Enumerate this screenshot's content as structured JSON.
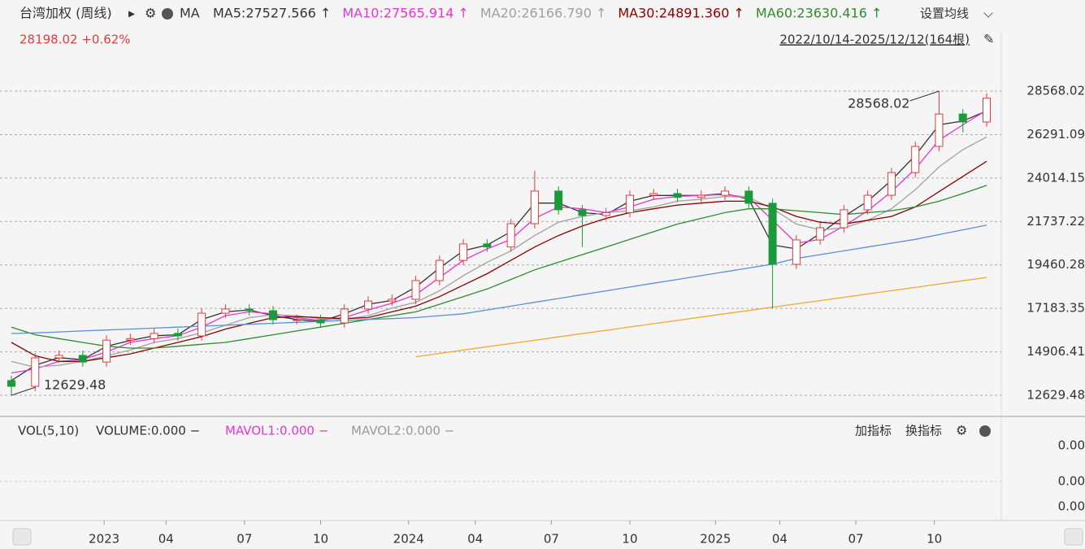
{
  "header": {
    "title": "台湾加权 (周线)",
    "indicator": "MA",
    "quote": "28198.02 +0.62%",
    "range": "2022/10/14-2025/12/12(164根)",
    "settings": "设置均线"
  },
  "volume_panel": {
    "title": "VOL(5,10)",
    "items": [
      "VOLUME:0.000 −",
      "MAVOL1:0.000 −",
      "MAVOL2:0.000 −"
    ],
    "buttons": [
      "加指标",
      "换指标"
    ],
    "yticks": [
      "0.00",
      "0.00",
      "0.00"
    ]
  },
  "chart_data": {
    "type": "candlestick",
    "candles": [
      [
        13400,
        13650,
        12629.48,
        13100
      ],
      [
        13100,
        14840,
        12850,
        14590
      ],
      [
        14590,
        14970,
        14340,
        14720
      ],
      [
        14720,
        14970,
        14120,
        14370
      ],
      [
        14370,
        15770,
        14120,
        15520
      ],
      [
        15520,
        15850,
        15270,
        15600
      ],
      [
        15600,
        16120,
        15350,
        15870
      ],
      [
        15870,
        16120,
        15490,
        15740
      ],
      [
        15740,
        17180,
        15490,
        16930
      ],
      [
        16930,
        17400,
        16680,
        17150
      ],
      [
        17150,
        17400,
        16810,
        17060
      ],
      [
        17060,
        17310,
        16340,
        16590
      ],
      [
        16590,
        16840,
        16340,
        16590
      ],
      [
        16590,
        16840,
        16170,
        16420
      ],
      [
        16420,
        17400,
        16170,
        17150
      ],
      [
        17150,
        17820,
        16900,
        17570
      ],
      [
        17570,
        17910,
        17320,
        17660
      ],
      [
        17660,
        18890,
        17410,
        18640
      ],
      [
        18640,
        19950,
        18390,
        19700
      ],
      [
        19700,
        20810,
        19450,
        20560
      ],
      [
        20560,
        20810,
        20150,
        20400
      ],
      [
        20400,
        21870,
        20150,
        21620
      ],
      [
        21620,
        24400,
        21370,
        23330
      ],
      [
        23330,
        23580,
        22100,
        22350
      ],
      [
        22350,
        22600,
        20400,
        22050
      ],
      [
        22050,
        22450,
        21800,
        22200
      ],
      [
        22200,
        23360,
        21950,
        23110
      ],
      [
        23110,
        23450,
        22860,
        23200
      ],
      [
        23200,
        23450,
        22750,
        23000
      ],
      [
        23000,
        23360,
        22750,
        23110
      ],
      [
        23110,
        23580,
        22860,
        23330
      ],
      [
        23330,
        23580,
        22440,
        22690
      ],
      [
        22690,
        22940,
        17183.35,
        19490
      ],
      [
        19490,
        21020,
        19240,
        20770
      ],
      [
        20770,
        21660,
        20520,
        21410
      ],
      [
        21410,
        22600,
        21160,
        22350
      ],
      [
        22350,
        23360,
        22100,
        23110
      ],
      [
        23110,
        24550,
        22860,
        24300
      ],
      [
        24300,
        25920,
        24050,
        25670
      ],
      [
        25670,
        28568.02,
        25420,
        27370
      ],
      [
        27370,
        27620,
        26400,
        26950
      ],
      [
        26950,
        28450,
        26700,
        28198.02
      ]
    ],
    "series": [
      {
        "name": "MA5:27527.566 ↑",
        "color": "#333333",
        "values": [
          13400,
          14200,
          14600,
          14500,
          15200,
          15500,
          15750,
          15800,
          16600,
          17000,
          17100,
          16800,
          16600,
          16500,
          16900,
          17400,
          17600,
          18300,
          19300,
          20200,
          20500,
          21200,
          22700,
          22700,
          22200,
          22100,
          22800,
          23100,
          23100,
          23100,
          23200,
          22900,
          20500,
          20300,
          21100,
          22000,
          22800,
          23900,
          25200,
          26800,
          27000,
          27527.566
        ]
      },
      {
        "name": "MA10:27565.914 ↑",
        "color": "#e535d6",
        "values": [
          13800,
          14000,
          14400,
          14500,
          14900,
          15400,
          15600,
          15750,
          16200,
          16800,
          17000,
          16900,
          16700,
          16550,
          16700,
          17100,
          17450,
          17900,
          18800,
          19700,
          20300,
          20800,
          21900,
          22500,
          22400,
          22200,
          22500,
          22900,
          23050,
          23100,
          23150,
          23000,
          21800,
          20600,
          20800,
          21500,
          22300,
          23300,
          24500,
          26000,
          26800,
          27565.914
        ]
      },
      {
        "name": "MA20:26166.790 ↑",
        "color": "#a0a0a0",
        "values": [
          14400,
          14100,
          14200,
          14400,
          14700,
          15000,
          15400,
          15600,
          15900,
          16300,
          16700,
          16850,
          16800,
          16650,
          16600,
          16800,
          17200,
          17500,
          18100,
          18900,
          19600,
          20200,
          21000,
          21700,
          22000,
          22200,
          22300,
          22500,
          22800,
          22900,
          23050,
          23000,
          22400,
          21600,
          21300,
          21400,
          21800,
          22400,
          23400,
          24600,
          25500,
          26166.79
        ]
      },
      {
        "name": "MA30:24891.360 ↑",
        "color": "#8b0000",
        "values": [
          15400,
          14700,
          14400,
          14400,
          14600,
          14800,
          15100,
          15400,
          15700,
          16100,
          16400,
          16700,
          16750,
          16700,
          16650,
          16700,
          17000,
          17300,
          17800,
          18400,
          19000,
          19700,
          20400,
          21000,
          21500,
          21900,
          22200,
          22400,
          22600,
          22700,
          22800,
          22800,
          22500,
          22000,
          21700,
          21600,
          21800,
          22000,
          22500,
          23300,
          24100,
          24891.36
        ]
      },
      {
        "name": "MA60:23630.416 ↑",
        "color": "#2e8b2e",
        "values": [
          16200,
          15800,
          15600,
          15400,
          15200,
          15100,
          15100,
          15200,
          15300,
          15400,
          15600,
          15800,
          16000,
          16200,
          16400,
          16600,
          16800,
          17000,
          17400,
          17800,
          18200,
          18700,
          19200,
          19600,
          20000,
          20400,
          20800,
          21200,
          21600,
          21900,
          22200,
          22400,
          22400,
          22300,
          22200,
          22100,
          22200,
          22300,
          22500,
          22800,
          23200,
          23630.416
        ]
      },
      {
        "color": "#5b8fd9",
        "values": [
          15870,
          15900,
          15950,
          16000,
          16050,
          16100,
          16150,
          16200,
          16250,
          16300,
          16350,
          16400,
          16450,
          16500,
          16550,
          16600,
          16650,
          16700,
          16800,
          16900,
          17100,
          17300,
          17500,
          17700,
          17900,
          18100,
          18300,
          18500,
          18700,
          18900,
          19100,
          19300,
          19500,
          19800,
          20000,
          20200,
          20400,
          20600,
          20800,
          21050,
          21300,
          21550
        ]
      },
      {
        "color": "#f0a830",
        "values": [
          null,
          null,
          null,
          null,
          null,
          null,
          null,
          null,
          null,
          null,
          null,
          null,
          null,
          null,
          null,
          null,
          null,
          14650,
          14820,
          15000,
          15170,
          15340,
          15510,
          15690,
          15860,
          16030,
          16210,
          16380,
          16550,
          16730,
          16900,
          17070,
          17250,
          17420,
          17590,
          17760,
          17940,
          18110,
          18280,
          18460,
          18630,
          18800
        ]
      }
    ],
    "up_color": "#e33b3b",
    "down_color": "#1a9a3a",
    "ylim": [
      11606,
      31638
    ],
    "yticks": [
      28568.02,
      26291.09,
      24014.15,
      21737.22,
      19460.28,
      17183.35,
      14906.41,
      12629.48
    ],
    "grid": true,
    "xticks": [
      {
        "value": 3.9,
        "label": "2023"
      },
      {
        "value": 6.5,
        "label": "04"
      },
      {
        "value": 9.8,
        "label": "07"
      },
      {
        "value": 13,
        "label": "10"
      },
      {
        "value": 16.7,
        "label": "2024"
      },
      {
        "value": 19.5,
        "label": "04"
      },
      {
        "value": 22.7,
        "label": "07"
      },
      {
        "value": 26,
        "label": "10"
      },
      {
        "value": 29.6,
        "label": "2025"
      },
      {
        "value": 32.3,
        "label": "04"
      },
      {
        "value": 35.5,
        "label": "07"
      },
      {
        "value": 38.8,
        "label": "10"
      }
    ],
    "annotations": [
      {
        "text": "28568.02",
        "candle": 39
      },
      {
        "text": "12629.48",
        "candle": 0
      }
    ]
  }
}
